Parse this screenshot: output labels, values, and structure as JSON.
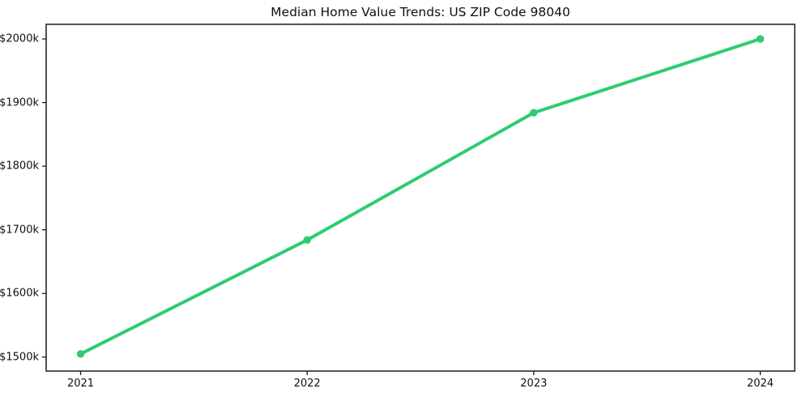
{
  "chart_data": {
    "type": "line",
    "title": "Median Home Value Trends: US ZIP Code 98040",
    "categories": [
      "2021",
      "2022",
      "2023",
      "2024"
    ],
    "series": [
      {
        "name": "Median home value",
        "values": [
          1505,
          1684,
          1884,
          2000
        ]
      }
    ],
    "value_unit": "thousand USD",
    "xlabel": "",
    "ylabel": "",
    "y_ticks": [
      1500,
      1600,
      1700,
      1800,
      1900,
      2000
    ],
    "y_tick_labels": [
      "$1500k",
      "$1600k",
      "$1700k",
      "$1800k",
      "$1900k",
      "$2000k"
    ],
    "x_tick_labels": [
      "2021",
      "2022",
      "2023",
      "2024"
    ],
    "ylim": [
      1478,
      2023
    ],
    "grid": false,
    "legend": "none",
    "colors": {
      "line": "#2ecc71",
      "marker": "#2ecc71",
      "spine": "#1a1a1a",
      "text": "#111111",
      "background": "#ffffff"
    }
  }
}
